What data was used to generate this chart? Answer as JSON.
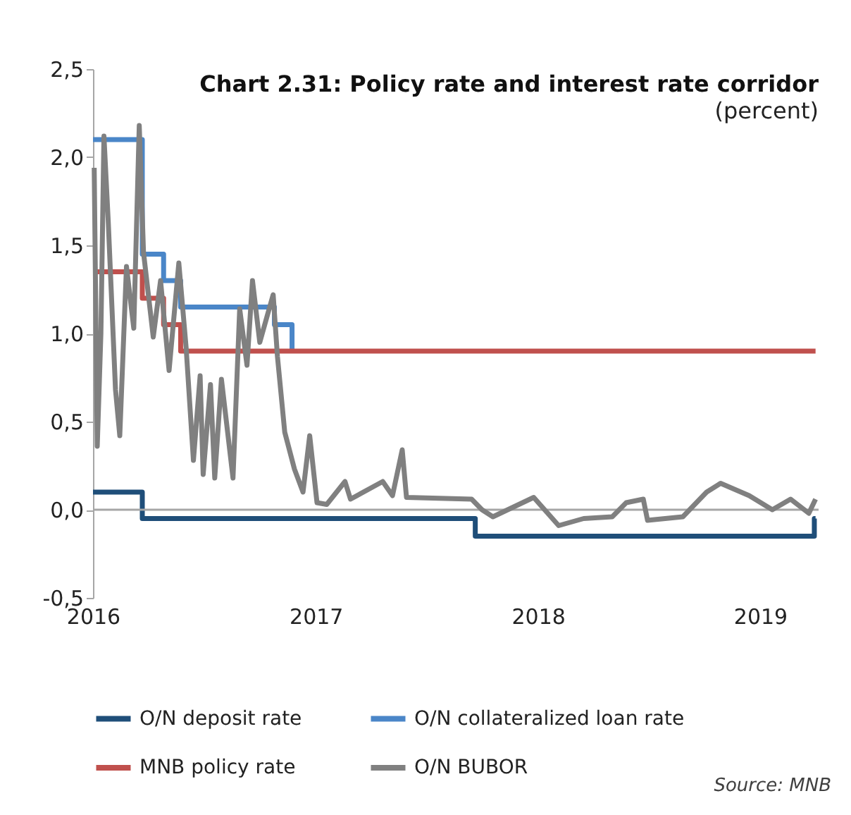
{
  "chart_data": {
    "type": "line",
    "title": "Chart 2.31: Policy rate and interest rate corridor",
    "subtitle": "(percent)",
    "xlim": [
      "2016-01-01",
      "2019-04-07"
    ],
    "xticks": [
      {
        "value": "2016-01-01",
        "label": "2016"
      },
      {
        "value": "2017-01-01",
        "label": "2017"
      },
      {
        "value": "2018-01-01",
        "label": "2018"
      },
      {
        "value": "2019-01-01",
        "label": "2019"
      }
    ],
    "ylim": [
      -0.5,
      2.5
    ],
    "yticks": [
      {
        "value": -0.5,
        "label": "-0,5"
      },
      {
        "value": 0,
        "label": "0,0"
      },
      {
        "value": 0.5,
        "label": "0,5"
      },
      {
        "value": 1,
        "label": "1,0"
      },
      {
        "value": 1.5,
        "label": "1,5"
      },
      {
        "value": 2,
        "label": "2,0"
      },
      {
        "value": 2.5,
        "label": "2,5"
      }
    ],
    "grid": false,
    "legend": "bottom",
    "ref_lines": [
      {
        "axis": "y",
        "value": 0,
        "color": "#a6a6a6"
      }
    ],
    "annotations": [
      "Source: MNB"
    ],
    "series": [
      {
        "name": "O/N deposit rate",
        "type": "step",
        "color": "#1f4e79",
        "x": [
          "2016-01-01",
          "2016-03-22",
          "2017-09-20",
          "2019-03-31",
          "2019-04-02"
        ],
        "values": [
          0.1,
          -0.05,
          -0.15,
          -0.05,
          -0.05
        ]
      },
      {
        "name": "O/N collateralized loan rate",
        "type": "step",
        "color": "#4a86c8",
        "x": [
          "2016-01-01",
          "2016-03-22",
          "2016-04-26",
          "2016-05-24",
          "2016-10-25",
          "2016-11-23"
        ],
        "values": [
          2.1,
          1.45,
          1.3,
          1.15,
          1.05,
          0.9
        ]
      },
      {
        "name": "MNB policy rate",
        "type": "step",
        "color": "#c0504d",
        "x": [
          "2016-01-01",
          "2016-03-22",
          "2016-04-26",
          "2016-05-24",
          "2019-04-02"
        ],
        "values": [
          1.35,
          1.2,
          1.05,
          0.9,
          0.9
        ]
      },
      {
        "name": "O/N BUBOR",
        "type": "line",
        "color": "#808080",
        "x": [
          "2016-01-03",
          "2016-01-08",
          "2016-01-14",
          "2016-01-19",
          "2016-01-26",
          "2016-02-07",
          "2016-02-14",
          "2016-02-25",
          "2016-03-08",
          "2016-03-17",
          "2016-03-24",
          "2016-04-09",
          "2016-04-21",
          "2016-05-05",
          "2016-05-21",
          "2016-06-02",
          "2016-06-14",
          "2016-06-25",
          "2016-06-30",
          "2016-07-12",
          "2016-07-19",
          "2016-07-30",
          "2016-08-18",
          "2016-08-29",
          "2016-09-10",
          "2016-09-19",
          "2016-10-01",
          "2016-10-14",
          "2016-10-23",
          "2016-10-30",
          "2016-11-11",
          "2016-11-27",
          "2016-12-11",
          "2016-12-22",
          "2017-01-03",
          "2017-01-19",
          "2017-02-18",
          "2017-02-27",
          "2017-04-21",
          "2017-05-07",
          "2017-05-23",
          "2017-05-30",
          "2017-09-14",
          "2017-10-01",
          "2017-10-19",
          "2017-12-25",
          "2018-02-04",
          "2018-03-17",
          "2018-05-03",
          "2018-05-26",
          "2018-06-23",
          "2018-06-30",
          "2018-08-27",
          "2018-10-05",
          "2018-10-28",
          "2018-12-14",
          "2019-01-21",
          "2019-02-20",
          "2019-03-22",
          "2019-04-02"
        ],
        "values": [
          1.94,
          0.36,
          1.0,
          2.12,
          1.64,
          0.68,
          0.42,
          1.38,
          1.03,
          2.18,
          1.46,
          0.98,
          1.3,
          0.79,
          1.4,
          0.92,
          0.28,
          0.76,
          0.2,
          0.71,
          0.18,
          0.74,
          0.18,
          1.14,
          0.82,
          1.3,
          0.95,
          1.11,
          1.22,
          0.87,
          0.44,
          0.23,
          0.1,
          0.42,
          0.04,
          0.03,
          0.16,
          0.06,
          0.16,
          0.08,
          0.34,
          0.07,
          0.06,
          0.0,
          -0.04,
          0.07,
          -0.09,
          -0.05,
          -0.04,
          0.04,
          0.06,
          -0.06,
          -0.04,
          0.1,
          0.15,
          0.08,
          0.0,
          0.06,
          -0.02,
          0.06
        ]
      }
    ]
  }
}
